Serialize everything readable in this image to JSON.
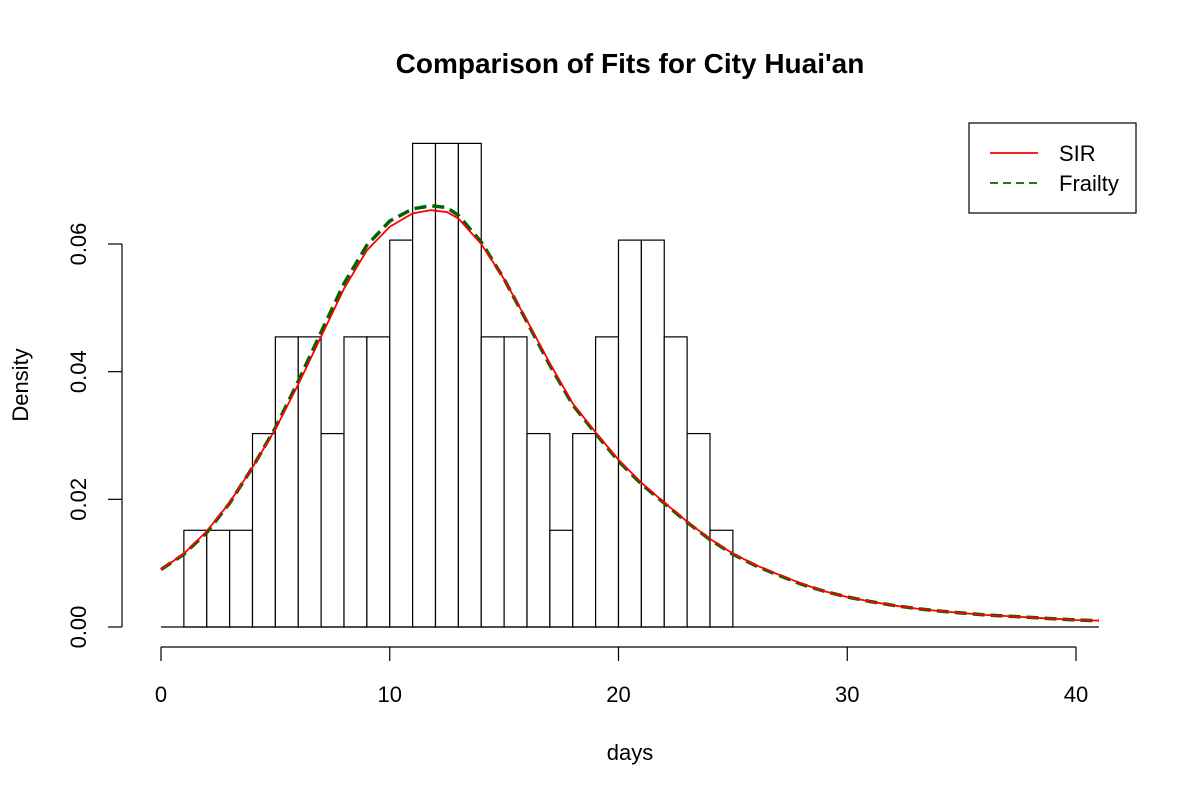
{
  "chart_data": {
    "type": "histogram",
    "title": "Comparison of Fits for City Huai'an",
    "xlabel": "days",
    "ylabel": "Density",
    "xlim": [
      0,
      41
    ],
    "ylim": [
      0,
      0.076
    ],
    "x_ticks": [
      0,
      10,
      20,
      30,
      40
    ],
    "y_ticks": [
      0.0,
      0.02,
      0.04,
      0.06
    ],
    "x_tick_labels": [
      "0",
      "10",
      "20",
      "30",
      "40"
    ],
    "y_tick_labels": [
      "0.00",
      "0.02",
      "0.04",
      "0.06"
    ],
    "histogram": {
      "bin_edges": [
        0,
        1,
        2,
        3,
        4,
        5,
        6,
        7,
        8,
        9,
        10,
        11,
        12,
        13,
        14,
        15,
        16,
        17,
        18,
        19,
        20,
        21,
        22,
        23,
        24,
        25
      ],
      "densities": [
        0.0,
        0.01515,
        0.01515,
        0.01515,
        0.0303,
        0.04545,
        0.04545,
        0.0303,
        0.04545,
        0.04545,
        0.06061,
        0.07576,
        0.07576,
        0.07576,
        0.04545,
        0.04545,
        0.0303,
        0.01515,
        0.0303,
        0.04545,
        0.06061,
        0.06061,
        0.04545,
        0.0303,
        0.01515
      ]
    },
    "series": [
      {
        "name": "SIR",
        "color": "#ff0000",
        "line_style": "solid",
        "x": [
          0,
          1,
          2,
          3,
          4,
          5,
          6,
          7,
          8,
          9,
          10,
          11,
          11.8,
          12.5,
          13,
          14,
          15,
          16,
          17,
          18,
          19,
          20,
          21,
          22,
          23,
          24,
          25,
          26,
          27,
          28,
          29,
          30,
          31,
          32,
          33,
          34,
          35,
          36,
          37,
          38,
          39,
          40,
          41
        ],
        "y": [
          0.009,
          0.0115,
          0.015,
          0.0195,
          0.025,
          0.031,
          0.038,
          0.0455,
          0.053,
          0.059,
          0.0627,
          0.0648,
          0.0653,
          0.065,
          0.064,
          0.06,
          0.0545,
          0.048,
          0.0413,
          0.035,
          0.0305,
          0.0262,
          0.0226,
          0.0195,
          0.0165,
          0.0138,
          0.0115,
          0.0097,
          0.0082,
          0.0068,
          0.0056,
          0.0047,
          0.004,
          0.0034,
          0.0029,
          0.0025,
          0.0022,
          0.0019,
          0.0017,
          0.0015,
          0.0013,
          0.0011,
          0.001
        ]
      },
      {
        "name": "Frailty",
        "color": "#006400",
        "line_style": "dashed",
        "x": [
          0,
          1,
          2,
          3,
          4,
          5,
          6,
          7,
          8,
          9,
          10,
          11,
          11.8,
          12.5,
          13,
          14,
          15,
          16,
          17,
          18,
          19,
          20,
          21,
          22,
          23,
          24,
          25,
          26,
          27,
          28,
          29,
          30,
          31,
          32,
          33,
          34,
          35,
          36,
          37,
          38,
          39,
          40,
          41
        ],
        "y": [
          0.009,
          0.0114,
          0.0148,
          0.0194,
          0.025,
          0.0312,
          0.0385,
          0.0462,
          0.0538,
          0.0598,
          0.0636,
          0.0655,
          0.066,
          0.0657,
          0.0645,
          0.0603,
          0.0545,
          0.0478,
          0.041,
          0.0348,
          0.0303,
          0.026,
          0.0224,
          0.0194,
          0.0164,
          0.0137,
          0.0114,
          0.0096,
          0.0081,
          0.0067,
          0.0056,
          0.0047,
          0.004,
          0.0034,
          0.0029,
          0.0025,
          0.0022,
          0.0019,
          0.0017,
          0.0015,
          0.0013,
          0.0011,
          0.001
        ]
      }
    ],
    "legend": {
      "position": "top-right",
      "entries": [
        "SIR",
        "Frailty"
      ]
    },
    "grid": false
  }
}
